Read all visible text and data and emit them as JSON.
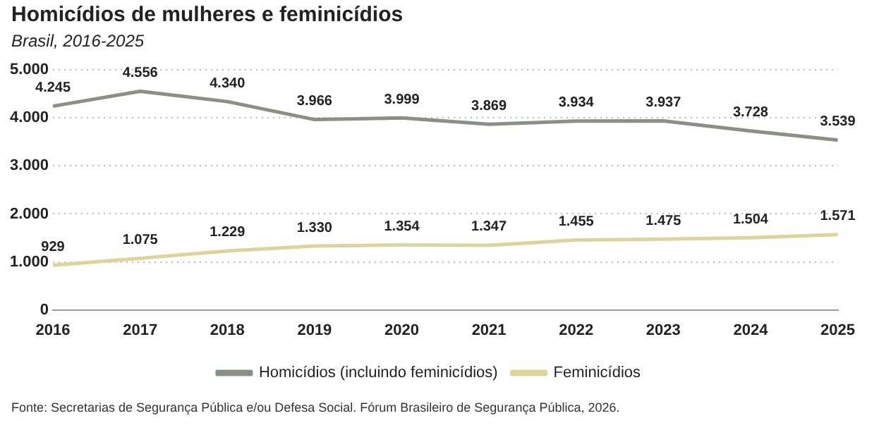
{
  "chart_data": {
    "type": "line",
    "title": "Homicídios de mulheres e feminicídios",
    "subtitle": "Brasil, 2016-2025",
    "categories": [
      "2016",
      "2017",
      "2018",
      "2019",
      "2020",
      "2021",
      "2022",
      "2023",
      "2024",
      "2025"
    ],
    "series": [
      {
        "name": "Homicídios (incluindo feminicídios)",
        "color": "#8b9087",
        "values": [
          4245,
          4556,
          4340,
          3966,
          3999,
          3869,
          3934,
          3937,
          3728,
          3539
        ],
        "value_labels": [
          "4.245",
          "4.556",
          "4.340",
          "3.966",
          "3.999",
          "3.869",
          "3.934",
          "3.937",
          "3.728",
          "3.539"
        ]
      },
      {
        "name": "Feminicídios",
        "color": "#dcd49c",
        "values": [
          929,
          1075,
          1229,
          1330,
          1354,
          1347,
          1455,
          1475,
          1504,
          1571
        ],
        "value_labels": [
          "929",
          "1.075",
          "1.229",
          "1.330",
          "1.354",
          "1.347",
          "1.455",
          "1.475",
          "1.504",
          "1.571"
        ]
      }
    ],
    "ylim": [
      0,
      5000
    ],
    "yticks": [
      {
        "value": 0,
        "label": "0"
      },
      {
        "value": 1000,
        "label": "1.000"
      },
      {
        "value": 2000,
        "label": "2.000"
      },
      {
        "value": 3000,
        "label": "3.000"
      },
      {
        "value": 4000,
        "label": "4.000"
      },
      {
        "value": 5000,
        "label": "5.000"
      }
    ],
    "grid": "y",
    "legend": "bottom",
    "marker": "none",
    "line_style": "solid",
    "annotations": [
      "Fonte: Secretarias de Segurança Pública e/ou Defesa Social. Fórum Brasileiro de Segurança Pública, 2026."
    ]
  }
}
